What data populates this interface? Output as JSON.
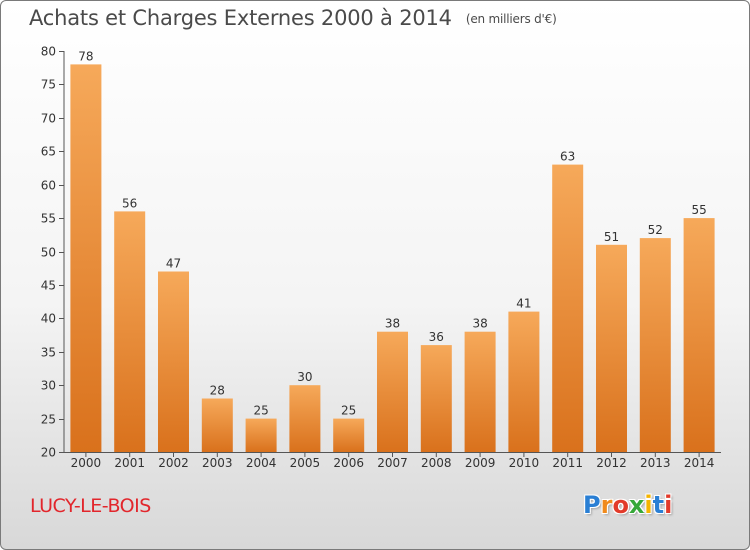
{
  "header": {
    "title": "Achats et Charges Externes 2000 à 2014",
    "unit": "(en milliers d'€)"
  },
  "footer": {
    "town": "LUCY-LE-BOIS",
    "brand": "Proxiti",
    "brand_colors": [
      "#2a7fd4",
      "#f08a1c",
      "#e23a2a",
      "#36a838",
      "#f5b400",
      "#2a7fd4",
      "#e23a2a"
    ]
  },
  "colors": {
    "bar_light": "#f6a95a",
    "bar_dark": "#d9711c",
    "axis": "#555555",
    "grid": "#cccccc",
    "text": "#333333"
  },
  "chart_data": {
    "type": "bar",
    "title": "Achats et Charges Externes 2000 à 2014",
    "subtitle": "(en milliers d'€)",
    "categories": [
      "2000",
      "2001",
      "2002",
      "2003",
      "2004",
      "2005",
      "2006",
      "2007",
      "2008",
      "2009",
      "2010",
      "2011",
      "2012",
      "2013",
      "2014"
    ],
    "values": [
      78,
      56,
      47,
      28,
      25,
      30,
      25,
      38,
      36,
      38,
      41,
      63,
      51,
      52,
      55
    ],
    "ylim": [
      20,
      80
    ],
    "yticks": [
      20,
      25,
      30,
      35,
      40,
      45,
      50,
      55,
      60,
      65,
      70,
      75,
      80
    ],
    "xlabel": "",
    "ylabel": "",
    "grid": false,
    "data_labels": true
  }
}
